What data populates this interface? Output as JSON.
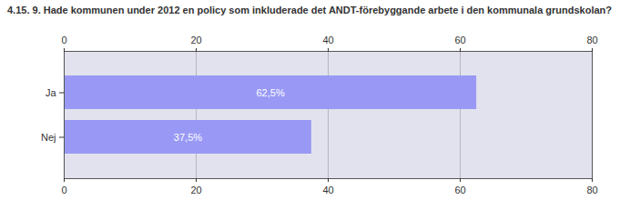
{
  "chart_data": {
    "type": "bar",
    "orientation": "horizontal",
    "title": "4.15. 9. Hade kommunen under 2012 en policy som inkluderade det ANDT-förebyggande arbete i den kommunala grundskolan?",
    "categories": [
      "Ja",
      "Nej"
    ],
    "values": [
      62.5,
      37.5
    ],
    "value_labels": [
      "62,5%",
      "37,5%"
    ],
    "color": "#9999f5",
    "xlim": [
      0,
      80
    ],
    "xticks": [
      0,
      20,
      40,
      60,
      80
    ],
    "grid": true,
    "data_labels": true
  }
}
